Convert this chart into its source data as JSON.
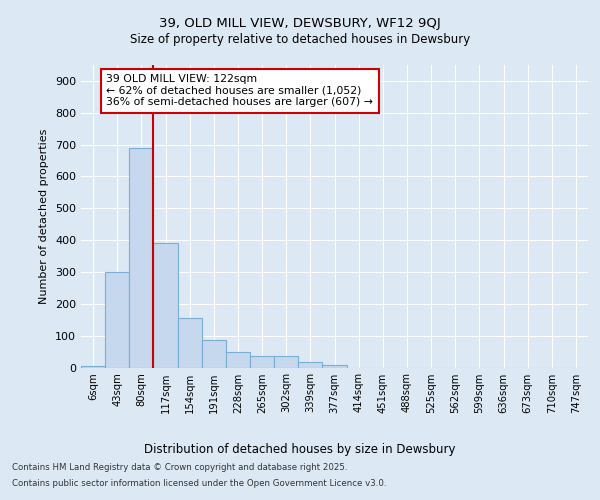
{
  "title_line1": "39, OLD MILL VIEW, DEWSBURY, WF12 9QJ",
  "title_line2": "Size of property relative to detached houses in Dewsbury",
  "xlabel": "Distribution of detached houses by size in Dewsbury",
  "ylabel": "Number of detached properties",
  "categories": [
    "6sqm",
    "43sqm",
    "80sqm",
    "117sqm",
    "154sqm",
    "191sqm",
    "228sqm",
    "265sqm",
    "302sqm",
    "339sqm",
    "377sqm",
    "414sqm",
    "451sqm",
    "488sqm",
    "525sqm",
    "562sqm",
    "599sqm",
    "636sqm",
    "673sqm",
    "710sqm",
    "747sqm"
  ],
  "values": [
    5,
    300,
    690,
    390,
    155,
    85,
    50,
    35,
    35,
    18,
    8,
    0,
    0,
    0,
    0,
    0,
    0,
    0,
    0,
    0,
    0
  ],
  "bar_color": "#c5d8ee",
  "bar_edge_color": "#7aafd4",
  "vline_x": 2.5,
  "vline_color": "#cc0000",
  "annotation_text": "39 OLD MILL VIEW: 122sqm\n← 62% of detached houses are smaller (1,052)\n36% of semi-detached houses are larger (607) →",
  "annotation_box_color": "#ffffff",
  "annotation_box_edge_color": "#cc0000",
  "ylim": [
    0,
    950
  ],
  "yticks": [
    0,
    100,
    200,
    300,
    400,
    500,
    600,
    700,
    800,
    900
  ],
  "background_color": "#dce9f5",
  "plot_bg_color": "#dce9f5",
  "grid_color": "#ffffff",
  "footer_line1": "Contains HM Land Registry data © Crown copyright and database right 2025.",
  "footer_line2": "Contains public sector information licensed under the Open Government Licence v3.0."
}
